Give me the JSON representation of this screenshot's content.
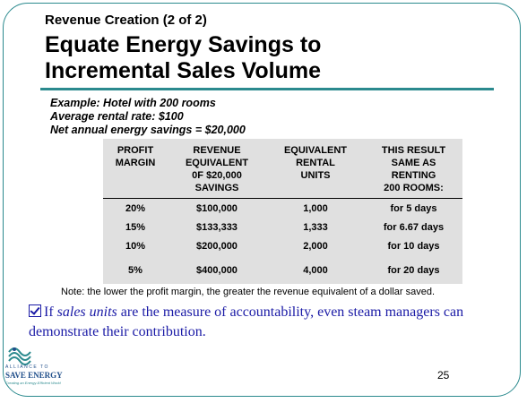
{
  "slide": {
    "subtitle": "Revenue Creation (2 of 2)",
    "title_line1": "Equate Energy Savings to",
    "title_line2": "Incremental Sales Volume",
    "example": [
      "Example:  Hotel with 200 rooms",
      "Average rental rate:  $100",
      "Net annual energy savings = $20,000"
    ],
    "table": {
      "headers": [
        [
          "PROFIT",
          "MARGIN"
        ],
        [
          "REVENUE",
          "EQUIVALENT",
          "0F $20,000",
          "SAVINGS"
        ],
        [
          "EQUIVALENT",
          "RENTAL",
          "UNITS"
        ],
        [
          "THIS RESULT",
          "SAME AS",
          "RENTING",
          "200 ROOMS:"
        ]
      ],
      "rows": [
        [
          "20%",
          "$100,000",
          "1,000",
          "for 5 days"
        ],
        [
          "15%",
          "$133,333",
          "1,333",
          "for 6.67 days"
        ],
        [
          "10%",
          "$200,000",
          "2,000",
          "for 10 days"
        ],
        [
          "5%",
          "$400,000",
          "4,000",
          "for 20 days"
        ]
      ]
    },
    "note": "Note:  the lower the profit margin, the greater the revenue equivalent of a dollar saved.",
    "bullet": {
      "prefix": "If ",
      "emphasis": "sales units",
      "rest": " are the measure of accountability, even steam managers can demonstrate their contribution."
    },
    "logo": {
      "line1": "ALLIANCE TO",
      "line2": "SAVE ENERGY",
      "tagline": "Creating an Energy-Efficient World"
    },
    "page_number": "25"
  },
  "colors": {
    "accent": "#2b8a8e",
    "bullet_text": "#1a1aa6",
    "table_bg": "#e0e0e0"
  }
}
